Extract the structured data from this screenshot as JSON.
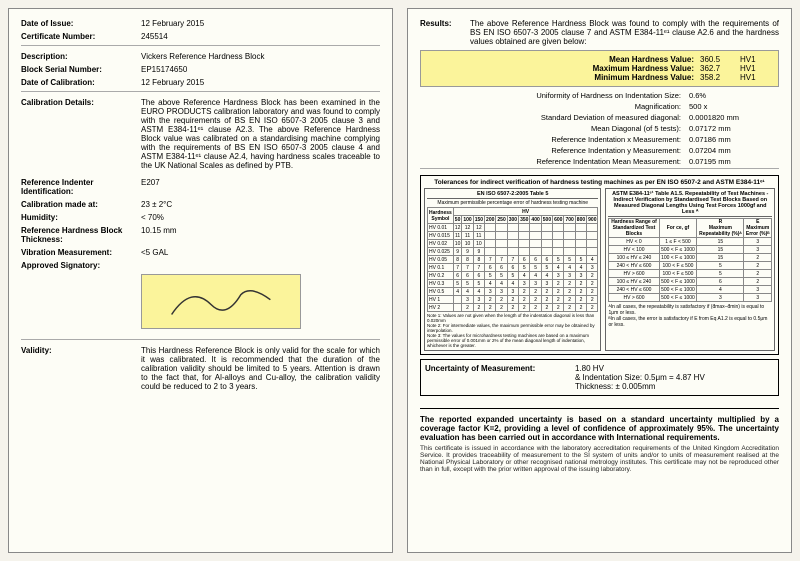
{
  "left": {
    "dateIssue": {
      "label": "Date of Issue:",
      "value": "12 February 2015"
    },
    "certNum": {
      "label": "Certificate Number:",
      "value": "245514"
    },
    "description": {
      "label": "Description:",
      "value": "Vickers Reference Hardness Block"
    },
    "serial": {
      "label": "Block Serial Number:",
      "value": "EP15174650"
    },
    "dateCal": {
      "label": "Date of Calibration:",
      "value": "12 February 2015"
    },
    "calDetails": {
      "label": "Calibration Details:",
      "value": "The above Reference Hardness Block has been examined in the EURO PRODUCTS calibration laboratory and was found to comply with the requirements of BS EN ISO 6507-3 2005 clause 3 and ASTM E384-11ᵉ¹ clause A2.3. The above Reference Hardness Block value was calibrated on a standardising machine complying with the requirements of BS EN ISO 6507-3 2005 clause 4 and ASTM E384-11ᵉ¹ clause A2.4, having hardness scales traceable to the UK National Scales as defined by PTB."
    },
    "indenter": {
      "label": "Reference Indenter Identification:",
      "value": "E207"
    },
    "calAt": {
      "label": "Calibration made at:",
      "value": "23 ± 2°C"
    },
    "humidity": {
      "label": "Humidity:",
      "value": "< 70%"
    },
    "thickness": {
      "label": "Reference Hardness Block Thickness:",
      "value": "10.15 mm"
    },
    "vibration": {
      "label": "Vibration Measurement:",
      "value": "<5 GAL"
    },
    "approved": {
      "label": "Approved Signatory:"
    },
    "validity": {
      "label": "Validity:",
      "value": "This Hardness Reference Block is only valid for the scale for which it was calibrated. It is recommended that the duration of the calibration validity should be limited to 5 years. Attention is drawn to the fact that, for Al-alloys and Cu-alloy, the calibration validity could be reduced to 2 to 3 years."
    }
  },
  "right": {
    "resultsLabel": "Results:",
    "resultsText": "The above Reference Hardness Block was found to comply with the requirements of BS EN ISO 6507-3 2005 clause 7 and ASTM E384-11ᵉ¹ clause A2.6 and the hardness values obtained are given below:",
    "mean": {
      "label": "Mean Hardness Value:",
      "val": "360.5",
      "unit": "HV1"
    },
    "max": {
      "label": "Maximum Hardness Value:",
      "val": "362.7",
      "unit": "HV1"
    },
    "min": {
      "label": "Minimum Hardness Value:",
      "val": "358.2",
      "unit": "HV1"
    },
    "rows": [
      {
        "label": "Uniformity of Hardness on Indentation Size:",
        "val": "0.6%"
      },
      {
        "label": "Magnification:",
        "val": "500 x"
      },
      {
        "label": "Standard Deviation of measured diagonal:",
        "val": "0.0001820 mm"
      },
      {
        "label": "Mean Diagonal (of 5 tests):",
        "val": "0.07172 mm"
      },
      {
        "label": "Reference Indentation x Measurement:",
        "val": "0.07186 mm"
      },
      {
        "label": "Reference Indentation y Measurement:",
        "val": "0.07204 mm"
      },
      {
        "label": "Reference Indentation Mean Measurement:",
        "val": "0.07195 mm"
      }
    ],
    "tolTitle": "Tolerances for indirect verification of hardness testing machines as per EN ISO 6507-2 and ASTM E384-11ᵉ¹",
    "tolLeftTitle": "EN ISO 6507-2:2005 Table 5",
    "tolRightTitle": "ASTM E384-11ᵉ¹ Table A1.5. Repeatability of Test Machines - Indirect Verification by Standardised Test Blocks Based on Measured Diagonal Lengths Using Test Forces 1000gf and Less ᴬ",
    "hardnessSymbols": [
      "HV 0.01",
      "HV 0.015",
      "HV 0.02",
      "HV 0.025",
      "HV 0.05",
      "HV 0.1",
      "HV 0.2",
      "HV 0.3",
      "HV 0.5",
      "HV 1",
      "HV 2"
    ],
    "rightRows": [
      {
        "range": "HV < 0",
        "l": "1 ≤ F < 500",
        "r": "15",
        "e": "3"
      },
      {
        "range": "HV < 100",
        "l": "500 < F ≤ 1000",
        "r": "15",
        "e": "3"
      },
      {
        "range": "100 ≤ HV ≤ 240",
        "l": "100 < F ≤ 1000",
        "r": "15",
        "e": "2"
      },
      {
        "range": "240 < HV ≤ 600",
        "l": "100 < F ≤ 500",
        "r": "5",
        "e": "2"
      },
      {
        "range": "HV > 600",
        "l": "100 < F ≤ 500",
        "r": "5",
        "e": "2"
      },
      {
        "range": "100 ≤ HV ≤ 240",
        "l": "500 < F ≤ 1000",
        "r": "6",
        "e": "2"
      },
      {
        "range": "240 < HV ≤ 600",
        "l": "500 < F ≤ 1000",
        "r": "4",
        "e": "3"
      },
      {
        "range": "HV > 600",
        "l": "500 < F ≤ 1000",
        "r": "3",
        "e": "3"
      }
    ],
    "noteLeft": "Note 1: Values are not given when the length of the indentation diagonal is less than 0.020mm\nNote 2: For intermediate values, the maximum permissible error may be obtained by interpolation.\nNote 3: The values for microhardness testing machines are based on a maximum permissible error of 0.001mm or 2% of the mean diagonal length of indentation, whichever is the greater.",
    "noteRight": "ᴬIn all cases, the repeatability is satisfactory if (d̄max–d̄min) is equal to 1μm or less.\nᴮIn all cases, the error is satisfactory if E from Eq A1.2 is equal to 0.5μm or less.",
    "uncLabel": "Uncertainty of Measurement:",
    "uncVal": "1.80 HV",
    "uncInd": "& Indentation Size: 0.5μm = 4.87 HV",
    "uncTh": "Thickness: ± 0.005mm",
    "footerBold": "The reported expanded uncertainty is based on a standard uncertainty multiplied by a coverage factor K=2, providing a level of confidence of approximately 95%. The uncertainty evaluation has been carried out in accordance with International requirements.",
    "footerSmall": "This certificate is issued in accordance with the laboratory accreditation requirements of the United Kingdom Accreditation Service. It provides traceability of measurement to the SI system of units and/or to units of measurement realised at the National Physical Laboratory or other recognised national metrology institutes. This certificate may not be reproduced other than in full, except with the prior written approval of the issuing laboratory."
  }
}
